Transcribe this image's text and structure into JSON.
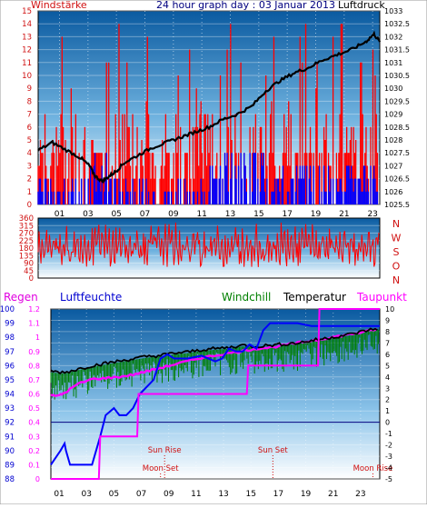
{
  "chart_data": [
    {
      "type": "line",
      "title": "24 hour graph day : 03 Januar 2013",
      "left_axis_label": "Windstärke",
      "right_axis_label": "Luftdruck",
      "x_ticks": [
        "01",
        "03",
        "05",
        "07",
        "09",
        "11",
        "13",
        "15",
        "17",
        "19",
        "21",
        "23"
      ],
      "left_ticks": [
        "15",
        "14",
        "13",
        "12",
        "11",
        "10",
        "9",
        "8",
        "7",
        "6",
        "5",
        "4",
        "3",
        "2",
        "1",
        "0"
      ],
      "right_ticks": [
        "1033",
        "1032.5",
        "1032",
        "1031.5",
        "1031",
        "1030.5",
        "1030",
        "1029.5",
        "1029",
        "1028.5",
        "1028",
        "1027.5",
        "1027",
        "1026.5",
        "1026",
        "1025.5"
      ],
      "xlim": [
        0,
        24
      ],
      "left_lim": [
        0,
        15
      ],
      "right_lim": [
        1025.5,
        1033
      ],
      "series": [
        {
          "role": "pressure",
          "color": "#000000",
          "axis": "right",
          "x": [
            0,
            1,
            2,
            3,
            3.6,
            4,
            4.5,
            5,
            5.5,
            6,
            7,
            8,
            9,
            10,
            11,
            12,
            13,
            14,
            15,
            16,
            17,
            18,
            19,
            20,
            21,
            22,
            23,
            23.6,
            24
          ],
          "y": [
            1027.6,
            1027.9,
            1027.6,
            1027.3,
            1027.0,
            1026.6,
            1026.4,
            1026.6,
            1026.8,
            1027.1,
            1027.4,
            1027.7,
            1027.9,
            1028.1,
            1028.3,
            1028.5,
            1028.8,
            1029.0,
            1029.3,
            1029.9,
            1030.3,
            1030.6,
            1030.8,
            1031.1,
            1031.3,
            1031.5,
            1031.8,
            1032.1,
            1031.8
          ]
        },
        {
          "role": "gust",
          "color": "#ff0000",
          "axis": "left"
        },
        {
          "role": "mean",
          "color": "#0000ff",
          "axis": "left"
        }
      ]
    },
    {
      "type": "line",
      "left_ticks": [
        "360",
        "315",
        "270",
        "225",
        "180",
        "135",
        "90",
        "45",
        "0"
      ],
      "right_labels": [
        "N",
        "W",
        "S",
        "O",
        "N"
      ],
      "ylim": [
        0,
        360
      ],
      "series": [
        {
          "role": "wind_direction",
          "color": "#ff0000"
        }
      ]
    },
    {
      "type": "line",
      "legend": [
        "Regen",
        "Luftfeuchte",
        "Windchill",
        "Temperatur",
        "Taupunkt"
      ],
      "x_ticks": [
        "01",
        "03",
        "05",
        "07",
        "09",
        "11",
        "13",
        "15",
        "17",
        "19",
        "21",
        "23"
      ],
      "humidity_ticks": [
        "100",
        "99",
        "98",
        "97",
        "96",
        "95",
        "94",
        "93",
        "92",
        "91",
        "90",
        "89",
        "88"
      ],
      "rain_ticks": [
        "1.2",
        "1.1",
        "1",
        "0.9",
        "0.8",
        "0.7",
        "0.6",
        "0.5",
        "0.4",
        "0.3",
        "0.2",
        "0.1",
        "0"
      ],
      "temp_ticks": [
        "10",
        "9",
        "8",
        "7",
        "6",
        "5",
        "4",
        "3",
        "2",
        "1",
        "0",
        "-1",
        "-2",
        "-3",
        "-4",
        "-5"
      ],
      "templim": [
        -5,
        10
      ],
      "humlim": [
        88,
        100
      ],
      "annotations": [
        "Sun Rise",
        "Moon Set",
        "Sun Set",
        "Moon Rise"
      ],
      "annotation_x": [
        8.3,
        8.0,
        16.2,
        23.5
      ],
      "series": [
        {
          "name": "Temperatur",
          "color": "#000000",
          "x": [
            0,
            1,
            2,
            3,
            4,
            5,
            6,
            7,
            8,
            9,
            10,
            11,
            12,
            13,
            14,
            15,
            16,
            17,
            18,
            19,
            20,
            21,
            22,
            23,
            24
          ],
          "y": [
            4.5,
            4.4,
            4.7,
            5.0,
            5.2,
            5.4,
            5.6,
            5.8,
            5.9,
            6.1,
            6.2,
            6.4,
            6.5,
            6.6,
            6.8,
            6.7,
            6.8,
            6.9,
            7.0,
            7.2,
            7.4,
            7.6,
            7.8,
            8.1,
            8.3
          ]
        },
        {
          "name": "Taupunkt",
          "color": "#ff00ff",
          "x": [
            0,
            0.5,
            1,
            2,
            3,
            4,
            5,
            6,
            7,
            8,
            9,
            10,
            11,
            12,
            13,
            14,
            15,
            16,
            17,
            18,
            19,
            20,
            21,
            22,
            23,
            24
          ],
          "y": [
            2.5,
            2.3,
            2.6,
            3.4,
            3.8,
            3.9,
            4.0,
            4.2,
            4.5,
            4.8,
            5.1,
            5.4,
            5.7,
            5.9,
            6.1,
            6.3,
            6.5,
            6.6,
            6.8,
            7.0,
            7.2,
            7.4,
            7.6,
            7.8,
            8.0,
            8.3
          ]
        },
        {
          "name": "Windchill",
          "color": "#008000"
        },
        {
          "name": "Luftfeuchte",
          "color": "#0000ff",
          "x": [
            0,
            0.7,
            1,
            1.1,
            1.4,
            2,
            3,
            3.3,
            3.6,
            4,
            4.6,
            5,
            5.5,
            6,
            6.5,
            7.5,
            8,
            8.5,
            9,
            10,
            11,
            12,
            12.5,
            13,
            13.5,
            14,
            14.5,
            15,
            15.5,
            16,
            17,
            18,
            19,
            20,
            21,
            22,
            23,
            24
          ],
          "y": [
            89,
            90,
            90.5,
            90,
            89,
            89,
            89,
            90,
            91,
            92.5,
            93,
            92.5,
            92.5,
            93,
            94,
            95,
            96.5,
            96.8,
            96.5,
            96.5,
            96.7,
            96.3,
            96.5,
            97.2,
            97,
            97,
            97.5,
            97.2,
            98.5,
            99,
            99,
            99,
            98.8,
            98.8,
            98.8,
            98.8,
            98.8,
            98.8
          ]
        },
        {
          "name": "Regen",
          "color": "#ff00ff",
          "x": [
            0,
            3.5,
            3.6,
            6.3,
            6.4,
            14.3,
            14.4,
            19.5,
            19.6,
            24
          ],
          "y": [
            0,
            0,
            0.3,
            0.3,
            0.6,
            0.6,
            0.8,
            0.8,
            1.2,
            1.2
          ]
        }
      ]
    }
  ]
}
